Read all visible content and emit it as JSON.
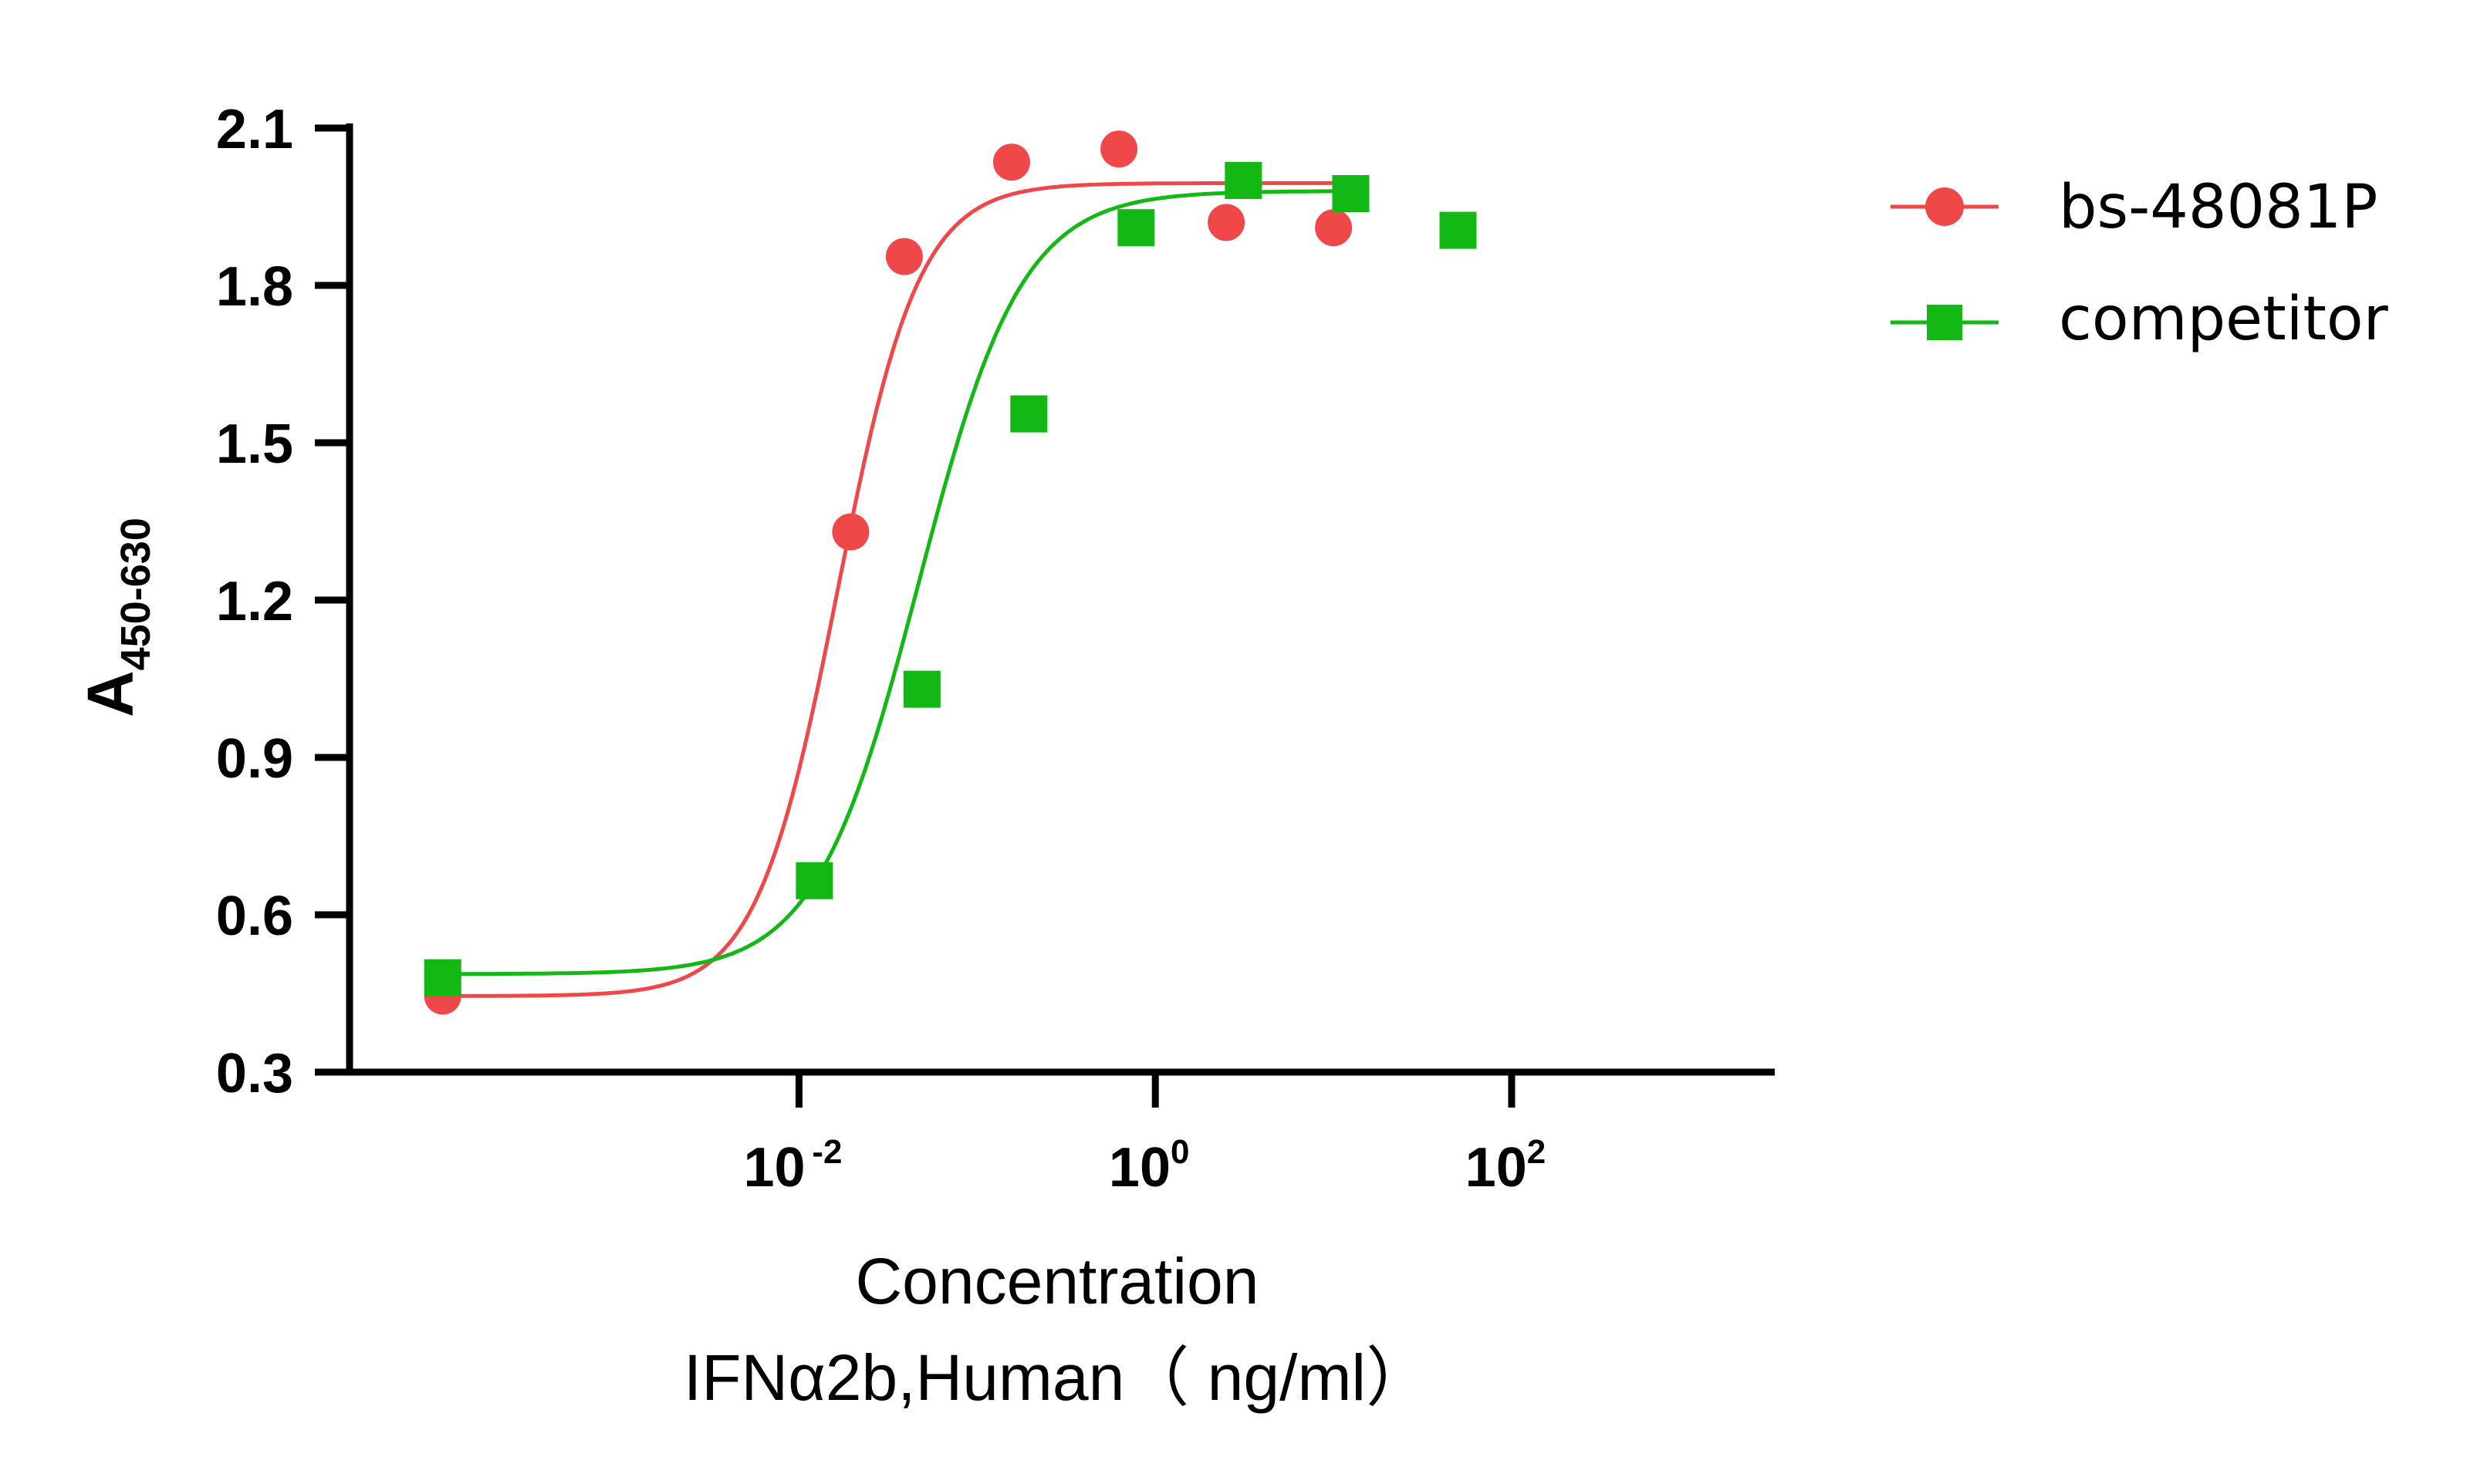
{
  "chart_data": {
    "type": "scatter",
    "x_scale": "log",
    "xlim": [
      3e-05,
      3000
    ],
    "ylim": [
      0.3,
      2.1
    ],
    "y_ticks": [
      "0.3",
      "0.6",
      "0.9",
      "1.2",
      "1.5",
      "1.8",
      "2.1"
    ],
    "x_ticks": [
      {
        "base": "10",
        "exp": "-2"
      },
      {
        "base": "10",
        "exp": "0"
      },
      {
        "base": "10",
        "exp": "2"
      }
    ],
    "ylabel": {
      "main": "A",
      "sub": "450-630"
    },
    "xlabel": [
      "Concentration",
      "IFNα2b,Human（ ng/ml）"
    ],
    "grid": false,
    "legend_position": "top-right",
    "series": [
      {
        "name": "bs-48081P",
        "marker": "circle",
        "color": "#f04848",
        "points": [
          {
            "x": 0.0001,
            "y": 0.445
          },
          {
            "x": 0.0195,
            "y": 1.33
          },
          {
            "x": 0.039,
            "y": 1.855
          },
          {
            "x": 0.156,
            "y": 2.035
          },
          {
            "x": 0.625,
            "y": 2.06
          },
          {
            "x": 2.5,
            "y": 1.92
          },
          {
            "x": 10,
            "y": 1.91
          }
        ],
        "fit": {
          "bottom": 0.445,
          "top": 1.995,
          "ec50": 0.0165,
          "hill": 1.9,
          "x_from": 0.0001,
          "x_to": 10
        }
      },
      {
        "name": "competitor",
        "marker": "square",
        "color": "#14b814",
        "points": [
          {
            "x": 0.0001,
            "y": 0.48
          },
          {
            "x": 0.0122,
            "y": 0.665
          },
          {
            "x": 0.049,
            "y": 1.03
          },
          {
            "x": 0.195,
            "y": 1.555
          },
          {
            "x": 0.78,
            "y": 1.91
          },
          {
            "x": 3.12,
            "y": 2.0
          },
          {
            "x": 12.5,
            "y": 1.975
          },
          {
            "x": 50,
            "y": 1.905
          }
        ],
        "fit": {
          "bottom": 0.487,
          "top": 1.98,
          "ec50": 0.047,
          "hill": 1.5,
          "x_from": 0.0001,
          "x_to": 15
        }
      }
    ]
  }
}
